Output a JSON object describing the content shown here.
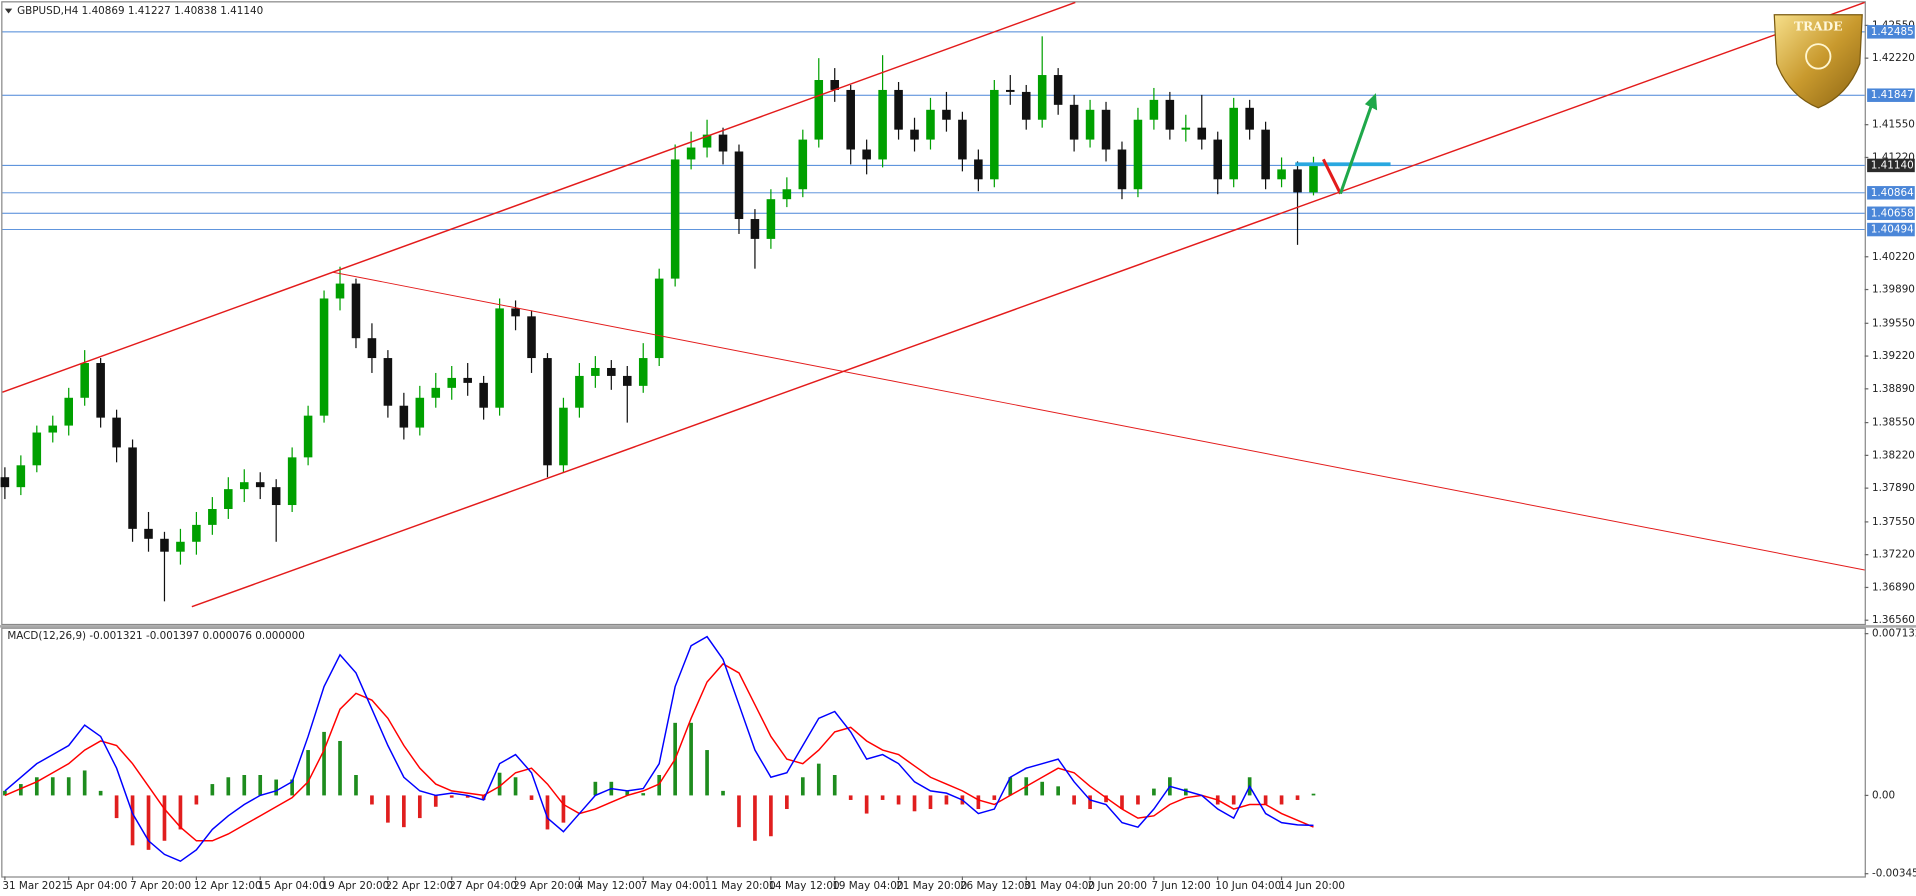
{
  "chart_data": [
    {
      "type": "candlestick",
      "title": "GBPUSD,H4  1.40869 1.41227 1.40838 1.41140",
      "up_color": "#00a000",
      "down_color": "#111111",
      "categories": [
        "31 Mar 2021",
        null,
        null,
        null,
        "5 Apr 04:00",
        null,
        null,
        null,
        "7 Apr 20:00",
        null,
        null,
        null,
        "12 Apr 12:00",
        null,
        null,
        null,
        "15 Apr 04:00",
        null,
        null,
        null,
        "19 Apr 20:00",
        null,
        null,
        null,
        "22 Apr 12:00",
        null,
        null,
        null,
        "27 Apr 04:00",
        null,
        null,
        null,
        "29 Apr 20:00",
        null,
        null,
        null,
        "4 May 12:00",
        null,
        null,
        null,
        "7 May 04:00",
        null,
        null,
        null,
        "11 May 20:00",
        null,
        null,
        null,
        "14 May 12:00",
        null,
        null,
        null,
        "19 May 04:00",
        null,
        null,
        null,
        "21 May 20:00",
        null,
        null,
        null,
        "26 May 12:00",
        null,
        null,
        null,
        "31 May 04:00",
        null,
        null,
        null,
        "2 Jun 20:00",
        null,
        null,
        null,
        "7 Jun 12:00",
        null,
        null,
        null,
        "10 Jun 04:00",
        null,
        null,
        null,
        "14 Jun 20:00",
        null,
        null
      ],
      "open": [
        1.38,
        1.379,
        1.3812,
        1.3845,
        1.3852,
        1.388,
        1.3915,
        1.386,
        1.383,
        1.3748,
        1.3738,
        1.3725,
        1.3735,
        1.3752,
        1.3768,
        1.3788,
        1.3795,
        1.379,
        1.3772,
        1.382,
        1.3862,
        1.398,
        1.3995,
        1.394,
        1.392,
        1.3872,
        1.385,
        1.388,
        1.389,
        1.39,
        1.3895,
        1.387,
        1.397,
        1.3962,
        1.392,
        1.3812,
        1.387,
        1.3902,
        1.391,
        1.3902,
        1.3892,
        1.392,
        1.4,
        1.412,
        1.4132,
        1.4145,
        1.4128,
        1.406,
        1.404,
        1.408,
        1.409,
        1.414,
        1.42,
        1.419,
        1.413,
        1.412,
        1.419,
        1.415,
        1.414,
        1.417,
        1.416,
        1.412,
        1.41,
        1.419,
        1.4188,
        1.416,
        1.4205,
        1.4175,
        1.414,
        1.417,
        1.413,
        1.409,
        1.416,
        1.418,
        1.415,
        1.4152,
        1.414,
        1.41,
        1.4172,
        1.415,
        1.41,
        1.411,
        1.40869
      ],
      "high": [
        1.381,
        1.3822,
        1.3852,
        1.3862,
        1.389,
        1.3928,
        1.392,
        1.3868,
        1.3838,
        1.3765,
        1.3745,
        1.3748,
        1.3765,
        1.378,
        1.38,
        1.3808,
        1.3805,
        1.3798,
        1.383,
        1.3872,
        1.3988,
        1.4012,
        1.4,
        1.3955,
        1.3928,
        1.3885,
        1.3892,
        1.3905,
        1.3912,
        1.3915,
        1.3902,
        1.398,
        1.3978,
        1.3968,
        1.3925,
        1.388,
        1.3915,
        1.3922,
        1.3918,
        1.3912,
        1.3935,
        1.401,
        1.4135,
        1.4148,
        1.416,
        1.4152,
        1.4135,
        1.407,
        1.409,
        1.4102,
        1.415,
        1.4222,
        1.4212,
        1.4195,
        1.414,
        1.4225,
        1.4198,
        1.4162,
        1.4182,
        1.4188,
        1.4168,
        1.413,
        1.42,
        1.4205,
        1.4195,
        1.4244,
        1.4212,
        1.4185,
        1.418,
        1.4178,
        1.4138,
        1.4172,
        1.4192,
        1.4188,
        1.4165,
        1.4185,
        1.4148,
        1.4182,
        1.418,
        1.4158,
        1.4122,
        1.4118,
        1.41227
      ],
      "low": [
        1.3778,
        1.3782,
        1.3805,
        1.3835,
        1.3842,
        1.3872,
        1.385,
        1.3815,
        1.3735,
        1.3725,
        1.3675,
        1.3712,
        1.3722,
        1.3742,
        1.3758,
        1.3775,
        1.3778,
        1.3735,
        1.3765,
        1.3812,
        1.3855,
        1.3968,
        1.393,
        1.3905,
        1.386,
        1.3838,
        1.3842,
        1.387,
        1.3878,
        1.3882,
        1.3858,
        1.3862,
        1.3948,
        1.3905,
        1.38,
        1.3805,
        1.386,
        1.389,
        1.3888,
        1.3855,
        1.3885,
        1.3912,
        1.3992,
        1.411,
        1.4122,
        1.4115,
        1.4045,
        1.401,
        1.403,
        1.4072,
        1.4082,
        1.4132,
        1.4178,
        1.4115,
        1.4105,
        1.4112,
        1.414,
        1.4128,
        1.413,
        1.4148,
        1.4108,
        1.4088,
        1.4092,
        1.4175,
        1.415,
        1.4152,
        1.4165,
        1.4128,
        1.4132,
        1.4118,
        1.408,
        1.4082,
        1.415,
        1.414,
        1.4138,
        1.413,
        1.4085,
        1.4092,
        1.414,
        1.409,
        1.4092,
        1.4034,
        1.40838
      ],
      "close": [
        1.379,
        1.3812,
        1.3845,
        1.3852,
        1.388,
        1.3915,
        1.386,
        1.383,
        1.3748,
        1.3738,
        1.3725,
        1.3735,
        1.3752,
        1.3768,
        1.3788,
        1.3795,
        1.379,
        1.3772,
        1.382,
        1.3862,
        1.398,
        1.3995,
        1.394,
        1.392,
        1.3872,
        1.385,
        1.388,
        1.389,
        1.39,
        1.3895,
        1.387,
        1.397,
        1.3962,
        1.392,
        1.3812,
        1.387,
        1.3902,
        1.391,
        1.3902,
        1.3892,
        1.392,
        1.4,
        1.412,
        1.4132,
        1.4145,
        1.4128,
        1.406,
        1.404,
        1.408,
        1.409,
        1.414,
        1.42,
        1.419,
        1.413,
        1.412,
        1.419,
        1.415,
        1.414,
        1.417,
        1.416,
        1.412,
        1.41,
        1.419,
        1.4188,
        1.416,
        1.4205,
        1.4175,
        1.414,
        1.417,
        1.413,
        1.409,
        1.416,
        1.418,
        1.415,
        1.4152,
        1.414,
        1.41,
        1.4172,
        1.415,
        1.41,
        1.411,
        1.40869,
        1.4114
      ],
      "ylim": [
        1.36523,
        1.42781
      ],
      "yticks": [
        {
          "value": 1.4255,
          "label": "1.42550"
        },
        {
          "value": 1.4222,
          "label": "1.42220"
        },
        {
          "value": 1.4155,
          "label": "1.41550"
        },
        {
          "value": 1.4122,
          "label": "1.41220"
        },
        {
          "value": 1.4022,
          "label": "1.40220"
        },
        {
          "value": 1.3989,
          "label": "1.39890"
        },
        {
          "value": 1.3955,
          "label": "1.39550"
        },
        {
          "value": 1.3922,
          "label": "1.39220"
        },
        {
          "value": 1.3889,
          "label": "1.38890"
        },
        {
          "value": 1.3855,
          "label": "1.38550"
        },
        {
          "value": 1.3822,
          "label": "1.38220"
        },
        {
          "value": 1.3789,
          "label": "1.37890"
        },
        {
          "value": 1.3755,
          "label": "1.37550"
        },
        {
          "value": 1.3722,
          "label": "1.37220"
        },
        {
          "value": 1.3689,
          "label": "1.36890"
        },
        {
          "value": 1.3656,
          "label": "1.36560"
        }
      ],
      "levels": [
        {
          "value": 1.42485,
          "label": "1.42485",
          "color": "#4a86d8"
        },
        {
          "value": 1.41847,
          "label": "1.41847",
          "color": "#4a86d8"
        },
        {
          "value": 1.4114,
          "label": "1.41140",
          "color": "#2b2b2b"
        },
        {
          "value": 1.40864,
          "label": "1.40864",
          "color": "#4a86d8"
        },
        {
          "value": 1.40658,
          "label": "1.40658",
          "color": "#4a86d8"
        },
        {
          "value": 1.40494,
          "label": "1.40494",
          "color": "#4a86d8"
        }
      ]
    },
    {
      "type": "macd",
      "title": "MACD(12,26,9) -0.001321 -0.001397 0.000076 0.000000",
      "ylim": [
        -0.00357,
        0.0074
      ],
      "yticks": [
        0.007132,
        {
          "value": 0,
          "label": "0.00"
        },
        -0.003452
      ],
      "histogram": {
        "up_color": "#1e8c1e",
        "down_color": "#e01e1e",
        "values": [
          0.0002,
          0.0005,
          0.0008,
          0.0008,
          0.0008,
          0.0011,
          0.0002,
          -0.001,
          -0.0022,
          -0.0024,
          -0.002,
          -0.0015,
          -0.0004,
          0.0005,
          0.0008,
          0.0009,
          0.0009,
          0.0007,
          0.0007,
          0.002,
          0.0028,
          0.0024,
          0.0009,
          -0.0004,
          -0.0012,
          -0.0014,
          -0.001,
          -0.0005,
          -0.0001,
          -0.0001,
          -0.0002,
          0.001,
          0.0008,
          -0.0002,
          -0.0015,
          -0.0012,
          0,
          0.0006,
          0.0006,
          0.0002,
          0.0001,
          0.0009,
          0.0032,
          0.0032,
          0.002,
          0.0002,
          -0.0014,
          -0.002,
          -0.0018,
          -0.0006,
          0.0008,
          0.0014,
          0.0009,
          -0.0002,
          -0.0008,
          -0.0002,
          -0.0004,
          -0.0007,
          -0.0006,
          -0.0004,
          -0.0004,
          -0.0006,
          -0.0002,
          0.0008,
          0.0008,
          0.0006,
          0.0004,
          -0.0004,
          -0.0006,
          -0.0003,
          -0.0006,
          -0.0004,
          0.0003,
          0.0008,
          0.0003,
          0,
          -0.0004,
          -0.0004,
          0.0008,
          -0.0004,
          -0.0004,
          -0.0002,
          7.6e-05
        ]
      },
      "series": [
        {
          "color": "#ff0000",
          "values": [
            0,
            0.0003,
            0.0006,
            0.001,
            0.0014,
            0.002,
            0.0024,
            0.0022,
            0.0014,
            0.0004,
            -0.0006,
            -0.0014,
            -0.002,
            -0.002,
            -0.0017,
            -0.0013,
            -0.0009,
            -0.0005,
            -0.0001,
            0.0006,
            0.002,
            0.0038,
            0.0045,
            0.0042,
            0.0034,
            0.0022,
            0.0012,
            0.0005,
            0.0002,
            0.0001,
            0,
            0.0004,
            0.001,
            0.0012,
            0.0005,
            -0.0004,
            -0.0008,
            -0.0006,
            -0.0003,
            0,
            0.0002,
            0.0005,
            0.0016,
            0.0034,
            0.005,
            0.0058,
            0.0054,
            0.004,
            0.0026,
            0.0016,
            0.0014,
            0.002,
            0.0028,
            0.003,
            0.0024,
            0.002,
            0.0018,
            0.0013,
            0.0008,
            0.0005,
            0.0002,
            -0.0002,
            -0.0004,
            0,
            0.0004,
            0.0008,
            0.0012,
            0.001,
            0.0004,
            -0.0001,
            -0.0006,
            -0.001,
            -0.0009,
            -0.0004,
            -0.0001,
            0,
            -0.0002,
            -0.0006,
            -0.0004,
            -0.0004,
            -0.0008,
            -0.0011,
            -0.001397
          ]
        },
        {
          "color": "#0000ff",
          "values": [
            0.0002,
            0.0008,
            0.0014,
            0.0018,
            0.0022,
            0.0031,
            0.0026,
            0.0012,
            -0.0008,
            -0.002,
            -0.0026,
            -0.0029,
            -0.0024,
            -0.0015,
            -0.0009,
            -0.0004,
            0,
            0.0002,
            0.0006,
            0.0026,
            0.0048,
            0.0062,
            0.0054,
            0.0038,
            0.0022,
            0.0008,
            0.0002,
            0,
            0.0001,
            0,
            -0.0002,
            0.0014,
            0.0018,
            0.001,
            -0.001,
            -0.0016,
            -0.0008,
            0,
            0.0003,
            0.0002,
            0.0003,
            0.0014,
            0.0048,
            0.0066,
            0.007,
            0.006,
            0.004,
            0.002,
            0.0008,
            0.001,
            0.0022,
            0.0034,
            0.0037,
            0.0028,
            0.0016,
            0.0018,
            0.0014,
            0.0006,
            0.0002,
            0.0001,
            -0.0002,
            -0.0008,
            -0.0006,
            0.0008,
            0.0012,
            0.0014,
            0.0016,
            0.0006,
            -0.0002,
            -0.0004,
            -0.0012,
            -0.0014,
            -0.0006,
            0.0004,
            0.0002,
            0,
            -0.0006,
            -0.001,
            0.0004,
            -0.0008,
            -0.0012,
            -0.0013,
            -0.001321
          ]
        }
      ]
    }
  ],
  "logo": {
    "text": "TRADE"
  }
}
